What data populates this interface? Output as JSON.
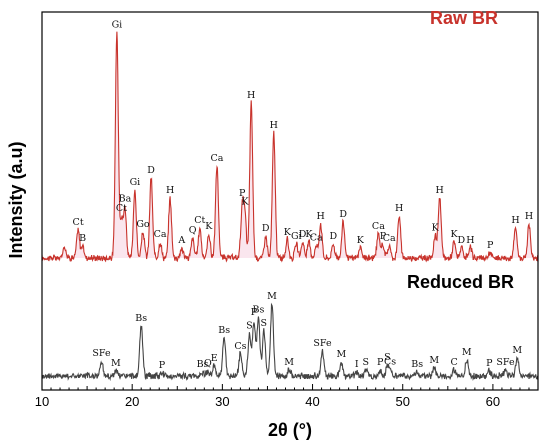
{
  "chart_data": {
    "type": "line",
    "xlabel": "2θ (°)",
    "ylabel": "Intensity (a.u)",
    "xlim": [
      10,
      65
    ],
    "x_ticks": [
      10,
      20,
      30,
      40,
      50,
      60
    ],
    "grid": false,
    "legend": "none",
    "series": [
      {
        "name": "Raw BR",
        "color": "#c8332c",
        "baseline": 14,
        "peaks": [
          {
            "x": 12.5,
            "h": 12
          },
          {
            "x": 14.0,
            "h": 28,
            "label": "Ct"
          },
          {
            "x": 14.5,
            "h": 12,
            "label": "B"
          },
          {
            "x": 18.3,
            "h": 225,
            "label": "Gi"
          },
          {
            "x": 18.8,
            "h": 38,
            "label": "Ct"
          },
          {
            "x": 19.2,
            "h": 50,
            "label": "Ba"
          },
          {
            "x": 20.3,
            "h": 68,
            "label": "Gi"
          },
          {
            "x": 21.2,
            "h": 26,
            "label": "Go"
          },
          {
            "x": 22.1,
            "h": 80,
            "label": "D"
          },
          {
            "x": 23.1,
            "h": 16,
            "label": "Ca"
          },
          {
            "x": 24.2,
            "h": 60,
            "label": "H"
          },
          {
            "x": 25.5,
            "h": 10,
            "label": "A"
          },
          {
            "x": 26.7,
            "h": 20,
            "label": "Q"
          },
          {
            "x": 27.5,
            "h": 30,
            "label": "Ct"
          },
          {
            "x": 28.5,
            "h": 24,
            "label": "K"
          },
          {
            "x": 29.4,
            "h": 92,
            "label": "Ca"
          },
          {
            "x": 32.2,
            "h": 50,
            "label": "P"
          },
          {
            "x": 32.5,
            "h": 40,
            "label": "K"
          },
          {
            "x": 33.2,
            "h": 155,
            "label": "H"
          },
          {
            "x": 34.8,
            "h": 22,
            "label": "D"
          },
          {
            "x": 35.7,
            "h": 125,
            "label": "H"
          },
          {
            "x": 37.2,
            "h": 18,
            "label": "K"
          },
          {
            "x": 38.2,
            "h": 14,
            "label": "Gi"
          },
          {
            "x": 38.9,
            "h": 16,
            "label": "D"
          },
          {
            "x": 39.6,
            "h": 16,
            "label": "K"
          },
          {
            "x": 40.4,
            "h": 12,
            "label": "Ca"
          },
          {
            "x": 40.9,
            "h": 34,
            "label": "H"
          },
          {
            "x": 42.3,
            "h": 14,
            "label": "D"
          },
          {
            "x": 43.4,
            "h": 36,
            "label": "D"
          },
          {
            "x": 45.3,
            "h": 10,
            "label": "K"
          },
          {
            "x": 47.3,
            "h": 24,
            "label": "Ca"
          },
          {
            "x": 47.8,
            "h": 14,
            "label": "P"
          },
          {
            "x": 48.5,
            "h": 12,
            "label": "Ca"
          },
          {
            "x": 49.6,
            "h": 42,
            "label": "H"
          },
          {
            "x": 53.6,
            "h": 22,
            "label": "K"
          },
          {
            "x": 54.1,
            "h": 60,
            "label": "H"
          },
          {
            "x": 55.7,
            "h": 16,
            "label": "K"
          },
          {
            "x": 56.5,
            "h": 10,
            "label": "D"
          },
          {
            "x": 57.5,
            "h": 10,
            "label": "H"
          },
          {
            "x": 59.7,
            "h": 5,
            "label": "P"
          },
          {
            "x": 62.5,
            "h": 30,
            "label": "H"
          },
          {
            "x": 64.0,
            "h": 34,
            "label": "H"
          }
        ]
      },
      {
        "name": "Reduced BR",
        "color": "#444444",
        "baseline": 10,
        "peaks": [
          {
            "x": 16.6,
            "h": 15,
            "label": "SFe"
          },
          {
            "x": 18.2,
            "h": 5,
            "label": "M"
          },
          {
            "x": 21.0,
            "h": 50,
            "label": "Bs"
          },
          {
            "x": 23.3,
            "h": 3,
            "label": "P"
          },
          {
            "x": 27.8,
            "h": 4,
            "label": "Bs"
          },
          {
            "x": 28.4,
            "h": 5,
            "label": "Q"
          },
          {
            "x": 29.1,
            "h": 10,
            "label": "E"
          },
          {
            "x": 30.2,
            "h": 38,
            "label": "Bs"
          },
          {
            "x": 32.0,
            "h": 22,
            "label": "Cs"
          },
          {
            "x": 33.0,
            "h": 42,
            "label": "S"
          },
          {
            "x": 33.5,
            "h": 55,
            "label": "P"
          },
          {
            "x": 34.0,
            "h": 58,
            "label": "Bs"
          },
          {
            "x": 34.6,
            "h": 45,
            "label": "S"
          },
          {
            "x": 35.5,
            "h": 72,
            "label": "M"
          },
          {
            "x": 37.4,
            "h": 6,
            "label": "M"
          },
          {
            "x": 41.1,
            "h": 25,
            "label": "SFe"
          },
          {
            "x": 43.2,
            "h": 14,
            "label": "M"
          },
          {
            "x": 44.9,
            "h": 4,
            "label": "I"
          },
          {
            "x": 45.9,
            "h": 6,
            "label": "S"
          },
          {
            "x": 47.5,
            "h": 6,
            "label": "P"
          },
          {
            "x": 48.3,
            "h": 10,
            "label": "S"
          },
          {
            "x": 48.6,
            "h": 5,
            "label": "Cs"
          },
          {
            "x": 51.6,
            "h": 4,
            "label": "Bs"
          },
          {
            "x": 53.5,
            "h": 8,
            "label": "M"
          },
          {
            "x": 55.7,
            "h": 6,
            "label": "C"
          },
          {
            "x": 57.1,
            "h": 16,
            "label": "M"
          },
          {
            "x": 59.6,
            "h": 5,
            "label": "P"
          },
          {
            "x": 61.4,
            "h": 6,
            "label": "SFe"
          },
          {
            "x": 62.7,
            "h": 18,
            "label": "M"
          }
        ]
      }
    ]
  }
}
